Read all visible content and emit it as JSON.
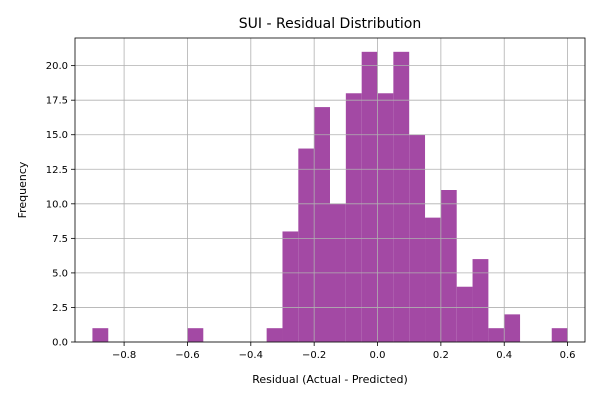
{
  "chart_data": {
    "type": "bar",
    "title": "SUI - Residual Distribution",
    "xlabel": "Residual (Actual - Predicted)",
    "ylabel": "Frequency",
    "bin_width": 0.05,
    "bins": [
      {
        "start": -0.9,
        "count": 1
      },
      {
        "start": -0.6,
        "count": 1
      },
      {
        "start": -0.35,
        "count": 1
      },
      {
        "start": -0.3,
        "count": 8
      },
      {
        "start": -0.25,
        "count": 14
      },
      {
        "start": -0.2,
        "count": 17
      },
      {
        "start": -0.15,
        "count": 10
      },
      {
        "start": -0.1,
        "count": 18
      },
      {
        "start": -0.05,
        "count": 21
      },
      {
        "start": 0.0,
        "count": 18
      },
      {
        "start": 0.05,
        "count": 21
      },
      {
        "start": 0.1,
        "count": 15
      },
      {
        "start": 0.15,
        "count": 9
      },
      {
        "start": 0.2,
        "count": 11
      },
      {
        "start": 0.25,
        "count": 4
      },
      {
        "start": 0.3,
        "count": 6
      },
      {
        "start": 0.35,
        "count": 1
      },
      {
        "start": 0.4,
        "count": 2
      },
      {
        "start": 0.55,
        "count": 1
      }
    ],
    "xlim": [
      -0.955,
      0.655
    ],
    "ylim": [
      0,
      22
    ],
    "xticks": [
      -0.8,
      -0.6,
      -0.4,
      -0.2,
      0.0,
      0.2,
      0.4,
      0.6
    ],
    "xtick_labels": [
      "−0.8",
      "−0.6",
      "−0.4",
      "−0.2",
      "0.0",
      "0.2",
      "0.4",
      "0.6"
    ],
    "yticks": [
      0,
      2.5,
      5,
      7.5,
      10,
      12.5,
      15,
      17.5,
      20
    ],
    "ytick_labels": [
      "0.0",
      "2.5",
      "5.0",
      "7.5",
      "10.0",
      "12.5",
      "15.0",
      "17.5",
      "20.0"
    ],
    "grid": true,
    "bar_color": "#a349a4"
  }
}
